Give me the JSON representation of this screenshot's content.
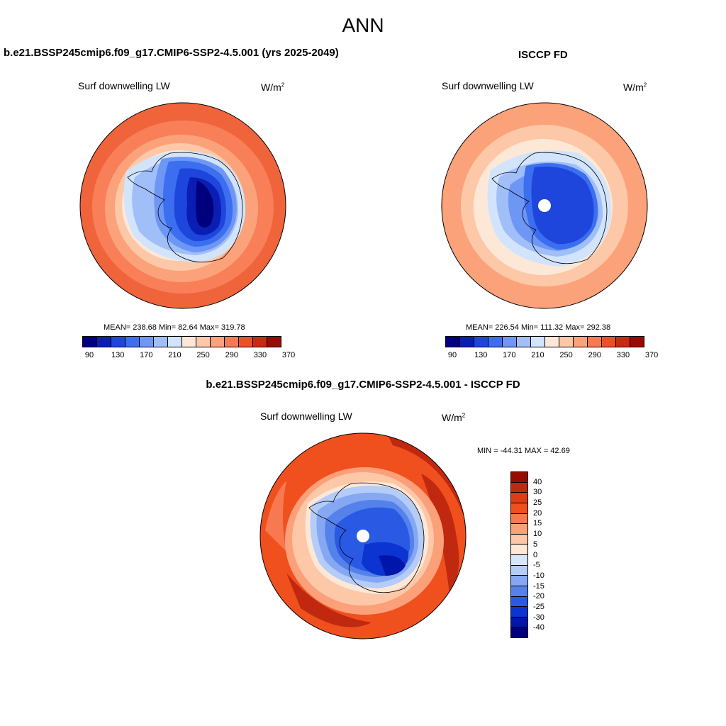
{
  "figure": {
    "title": "ANN"
  },
  "panels": {
    "model": {
      "title": "b.e21.BSSP245cmip6.f09_g17.CMIP6-SSP2-4.5.001 (yrs 2025-2049)",
      "variable": "Surf downwelling LW",
      "units": "W/m",
      "units_exp": "2",
      "stats": "MEAN= 238.68  Min=  82.64  Max= 319.78"
    },
    "obs": {
      "title": "ISCCP FD",
      "variable": "Surf downwelling LW",
      "units": "W/m",
      "units_exp": "2",
      "stats": "MEAN= 226.54  Min= 111.32  Max= 292.38"
    },
    "diff": {
      "title": "b.e21.BSSP245cmip6.f09_g17.CMIP6-SSP2-4.5.001 - ISCCP FD",
      "variable": "Surf downwelling LW",
      "units": "W/m",
      "units_exp": "2",
      "stats": "MIN = -44.31 MAX =  42.69"
    }
  },
  "colorbars": {
    "abs": {
      "colors": [
        "#00007f",
        "#0a1eb4",
        "#1e46dc",
        "#3c6ef0",
        "#6e96f5",
        "#a0bef8",
        "#d2e4fc",
        "#fde8d8",
        "#fdc8a8",
        "#fca27a",
        "#f87a50",
        "#ec5028",
        "#c82c10",
        "#960c00"
      ],
      "tick_labels": [
        "90",
        "130",
        "170",
        "210",
        "250",
        "290",
        "330",
        "370"
      ]
    },
    "diff": {
      "colors": [
        "#960c00",
        "#c02810",
        "#e03c14",
        "#f0501e",
        "#f87850",
        "#fca07a",
        "#fdc8a8",
        "#fde8d8",
        "#d8e6fc",
        "#b4ccf8",
        "#86a8f2",
        "#5482ea",
        "#2a5ae4",
        "#0c34d0",
        "#0016aa",
        "#000078"
      ],
      "tick_labels": [
        "40",
        "30",
        "25",
        "20",
        "15",
        "10",
        "5",
        "0",
        "-5",
        "-10",
        "-15",
        "-20",
        "-25",
        "-30",
        "-40"
      ]
    }
  }
}
